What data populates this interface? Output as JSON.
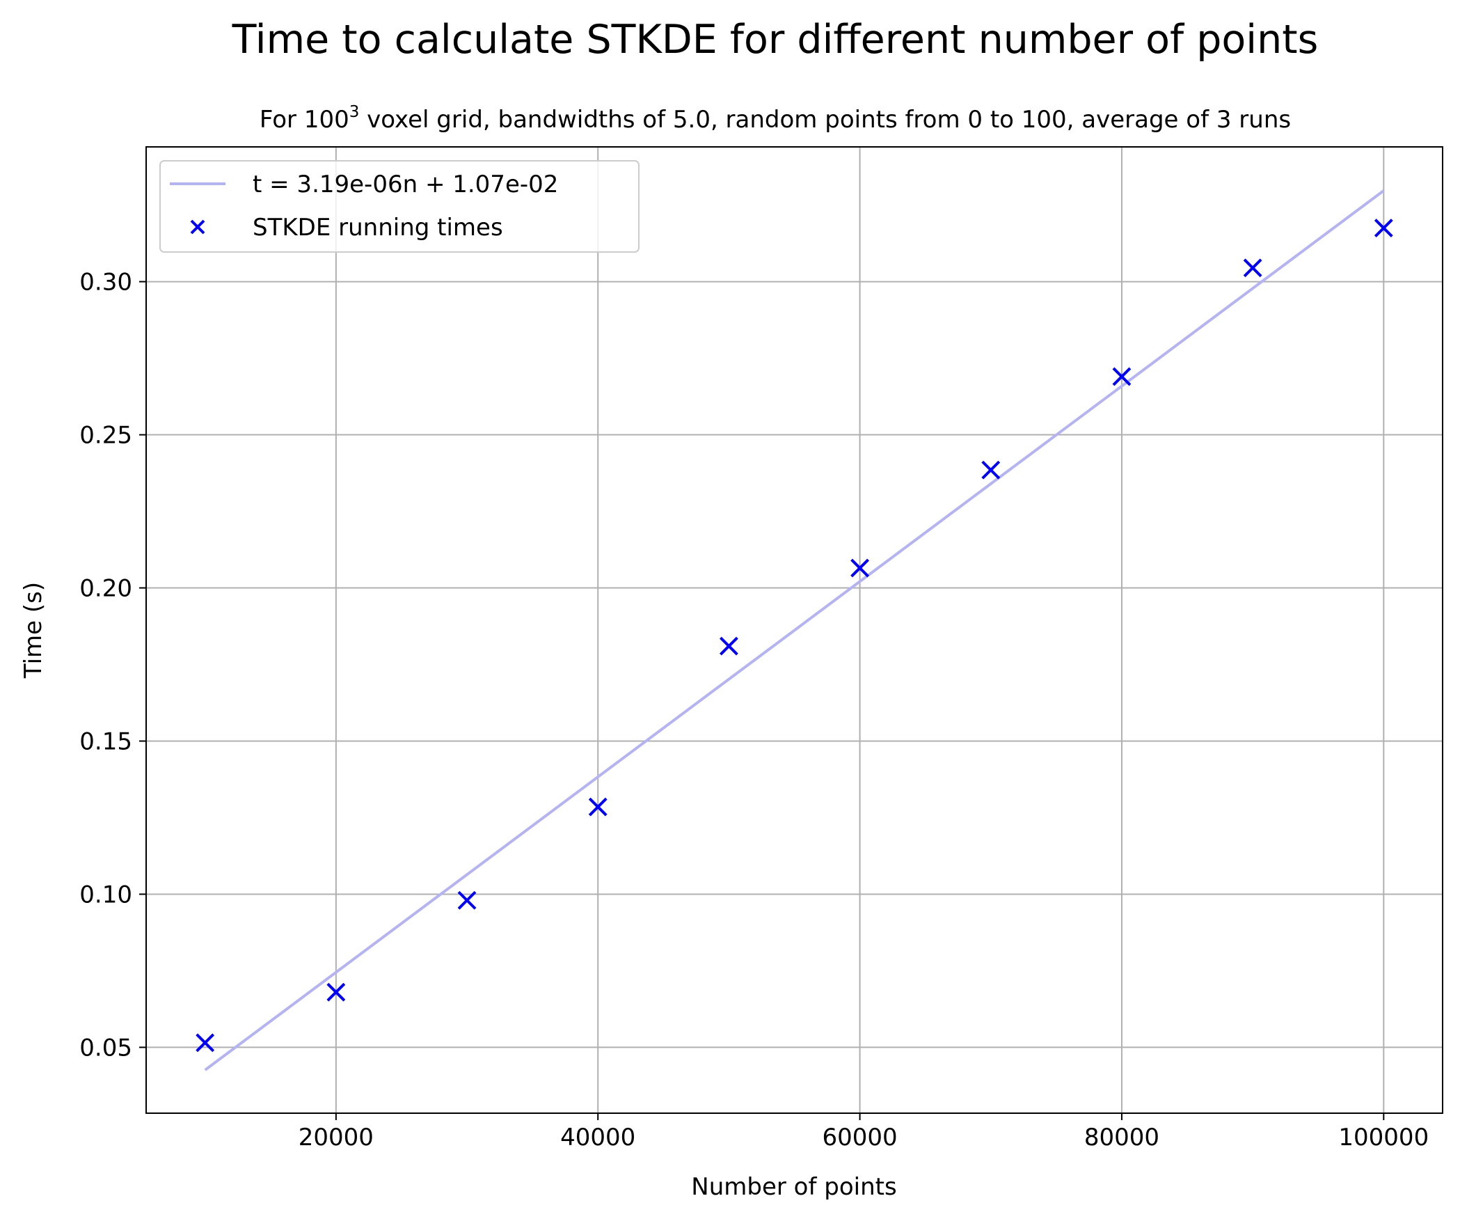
{
  "chart_data": {
    "type": "scatter",
    "title": "Time to calculate STKDE for different number of points",
    "subtitle": {
      "prefix": "For 100",
      "superscript": "3",
      "suffix": " voxel grid, bandwidths of 5.0, random points from 0 to 100, average of 3 runs"
    },
    "xlabel": "Number of points",
    "ylabel": "Time (s)",
    "xlim": [
      5500,
      104500
    ],
    "ylim": [
      0.0285,
      0.344
    ],
    "xticks": [
      {
        "value": 20000,
        "label": "20000"
      },
      {
        "value": 40000,
        "label": "40000"
      },
      {
        "value": 60000,
        "label": "60000"
      },
      {
        "value": 80000,
        "label": "80000"
      },
      {
        "value": 100000,
        "label": "100000"
      }
    ],
    "yticks": [
      {
        "value": 0.05,
        "label": "0.05"
      },
      {
        "value": 0.1,
        "label": "0.10"
      },
      {
        "value": 0.15,
        "label": "0.15"
      },
      {
        "value": 0.2,
        "label": "0.20"
      },
      {
        "value": 0.25,
        "label": "0.25"
      },
      {
        "value": 0.3,
        "label": "0.30"
      }
    ],
    "grid": true,
    "legend_position": "top-left",
    "series": [
      {
        "name": "t = 3.19e-06n + 1.07e-02",
        "kind": "line",
        "color": "#b3b3f5",
        "slope": 3.19e-06,
        "intercept": 0.0107,
        "x": [
          10000,
          100000
        ]
      },
      {
        "name": "STKDE running times",
        "kind": "scatter",
        "marker": "x",
        "color": "#0000ff",
        "x": [
          10000,
          20000,
          30000,
          40000,
          50000,
          60000,
          70000,
          80000,
          90000,
          100000
        ],
        "y": [
          0.0515,
          0.068,
          0.098,
          0.1285,
          0.181,
          0.2065,
          0.2385,
          0.269,
          0.3045,
          0.3175
        ]
      }
    ]
  }
}
